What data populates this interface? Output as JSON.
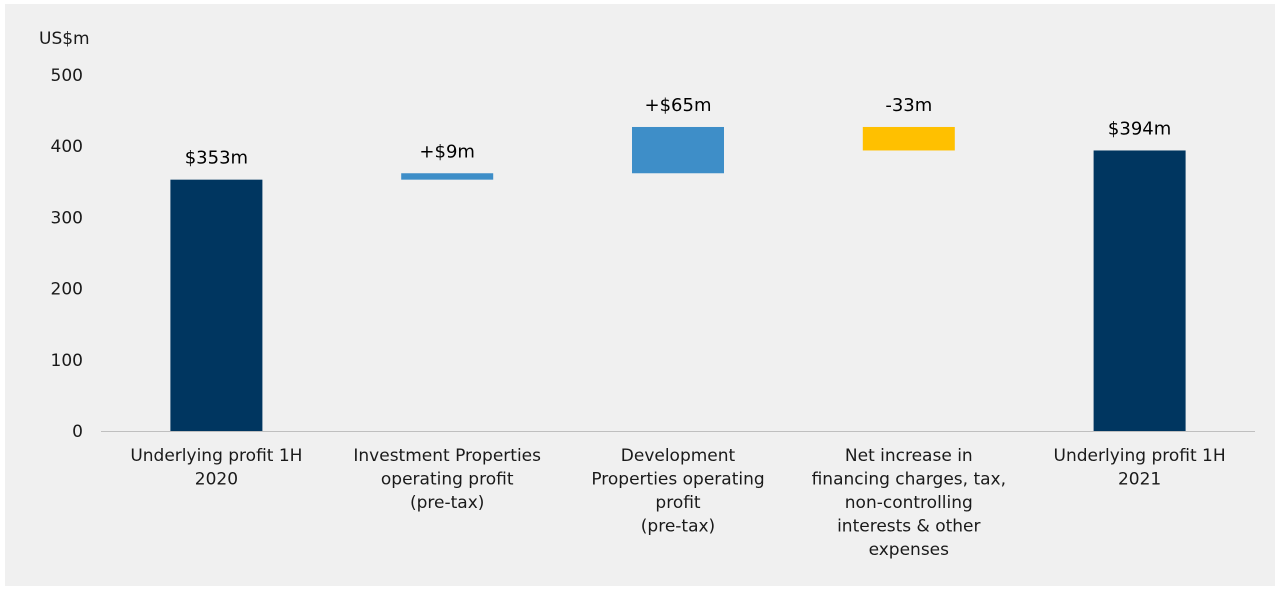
{
  "chart_data": {
    "type": "waterfall",
    "y_unit": "US$m",
    "ylim": [
      0,
      500
    ],
    "yticks": [
      0,
      100,
      200,
      300,
      400,
      500
    ],
    "grid": false,
    "categories": [
      [
        "Underlying profit 1H",
        "2020"
      ],
      [
        "Investment Properties",
        "operating profit",
        "(pre-tax)"
      ],
      [
        "Development",
        "Properties operating",
        "profit",
        "(pre-tax)"
      ],
      [
        "Net increase in",
        "financing charges, tax,",
        "non-controlling",
        "interests & other",
        "expenses"
      ],
      [
        "Underlying profit 1H",
        "2021"
      ]
    ],
    "bars": [
      {
        "kind": "total",
        "start": 0,
        "end": 353,
        "label": "$353m",
        "color": "#003660"
      },
      {
        "kind": "delta",
        "start": 353,
        "end": 362,
        "label": "+$9m",
        "color": "#3e8ec8"
      },
      {
        "kind": "delta",
        "start": 362,
        "end": 427,
        "label": "+$65m",
        "color": "#3e8ec8"
      },
      {
        "kind": "delta",
        "start": 427,
        "end": 394,
        "label": "-33m",
        "color": "#ffc000"
      },
      {
        "kind": "total",
        "start": 0,
        "end": 394,
        "label": "$394m",
        "color": "#003660"
      }
    ]
  }
}
